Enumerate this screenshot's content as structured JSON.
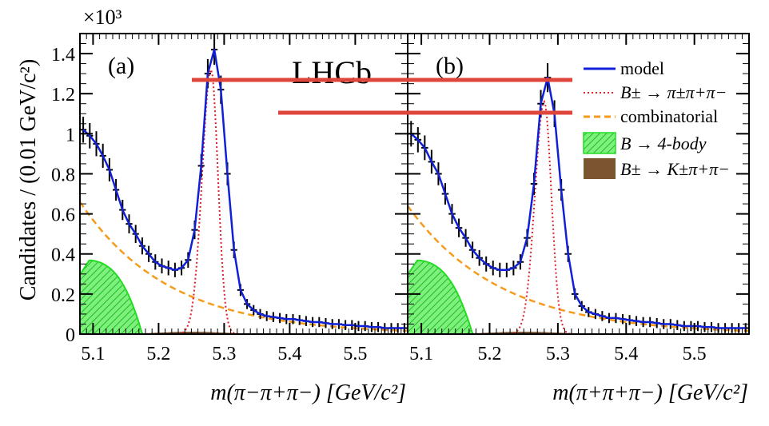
{
  "chart_data": {
    "type": "line",
    "experiment_label": "LHCb",
    "ylabel": "Candidates / (0.01 GeV/c²)",
    "y_multiplier": "×10³",
    "ylim": [
      0,
      1.5
    ],
    "xlim": [
      5.08,
      5.58
    ],
    "x_ticks": [
      "5.1",
      "5.2",
      "5.3",
      "5.4",
      "5.5"
    ],
    "y_ticks": [
      "0",
      "0.2",
      "0.4",
      "0.6",
      "0.8",
      "1",
      "1.2",
      "1.4"
    ],
    "grid": false,
    "legend_position": "top-right of panel (b)",
    "legend": [
      {
        "label": "model",
        "color": "#1020d8",
        "style": "solid-line"
      },
      {
        "label": "B± → π±π+π−",
        "color": "#e0202a",
        "style": "dotted-line"
      },
      {
        "label": "combinatorial",
        "color": "#f59b1c",
        "style": "dashed-line"
      },
      {
        "label": "B → 4-body",
        "color": "#22dd22",
        "style": "hatched-fill"
      },
      {
        "label": "B± → K±π+π−",
        "color": "#7a5530",
        "style": "solid-fill"
      }
    ],
    "panels": [
      {
        "label": "(a)",
        "xlabel": "m(π−π+π−) [GeV/c²]",
        "peak": 1.44,
        "data_x": [
          5.085,
          5.095,
          5.105,
          5.115,
          5.125,
          5.135,
          5.145,
          5.155,
          5.165,
          5.175,
          5.185,
          5.195,
          5.205,
          5.215,
          5.225,
          5.235,
          5.245,
          5.255,
          5.265,
          5.275,
          5.285,
          5.295,
          5.305,
          5.315,
          5.325,
          5.335,
          5.345,
          5.355,
          5.365,
          5.375,
          5.385,
          5.395,
          5.405,
          5.415,
          5.425,
          5.435,
          5.445,
          5.455,
          5.465,
          5.475,
          5.485,
          5.495,
          5.505,
          5.515,
          5.525,
          5.535,
          5.545,
          5.555,
          5.565,
          5.575
        ],
        "data_y": [
          1.02,
          0.99,
          0.95,
          0.89,
          0.82,
          0.72,
          0.62,
          0.55,
          0.5,
          0.44,
          0.4,
          0.36,
          0.34,
          0.33,
          0.32,
          0.33,
          0.37,
          0.52,
          0.84,
          1.3,
          1.42,
          1.22,
          0.8,
          0.42,
          0.22,
          0.15,
          0.12,
          0.1,
          0.09,
          0.085,
          0.08,
          0.075,
          0.075,
          0.07,
          0.065,
          0.06,
          0.06,
          0.055,
          0.05,
          0.05,
          0.045,
          0.045,
          0.04,
          0.04,
          0.035,
          0.035,
          0.03,
          0.03,
          0.03,
          0.03
        ]
      },
      {
        "label": "(b)",
        "xlabel": "m(π+π+π−) [GeV/c²]",
        "peak": 1.28,
        "data_x": [
          5.085,
          5.095,
          5.105,
          5.115,
          5.125,
          5.135,
          5.145,
          5.155,
          5.165,
          5.175,
          5.185,
          5.195,
          5.205,
          5.215,
          5.225,
          5.235,
          5.245,
          5.255,
          5.265,
          5.275,
          5.285,
          5.295,
          5.305,
          5.315,
          5.325,
          5.335,
          5.345,
          5.355,
          5.365,
          5.375,
          5.385,
          5.395,
          5.405,
          5.415,
          5.425,
          5.435,
          5.445,
          5.455,
          5.465,
          5.475,
          5.485,
          5.495,
          5.505,
          5.515,
          5.525,
          5.535,
          5.545,
          5.555,
          5.565,
          5.575
        ],
        "data_y": [
          1.0,
          0.97,
          0.93,
          0.86,
          0.8,
          0.7,
          0.6,
          0.53,
          0.48,
          0.42,
          0.38,
          0.35,
          0.33,
          0.32,
          0.32,
          0.33,
          0.36,
          0.48,
          0.75,
          1.15,
          1.28,
          1.1,
          0.72,
          0.4,
          0.2,
          0.14,
          0.11,
          0.1,
          0.09,
          0.08,
          0.08,
          0.075,
          0.07,
          0.065,
          0.06,
          0.06,
          0.055,
          0.05,
          0.05,
          0.045,
          0.04,
          0.04,
          0.04,
          0.035,
          0.035,
          0.03,
          0.03,
          0.03,
          0.03,
          0.03
        ]
      }
    ]
  }
}
